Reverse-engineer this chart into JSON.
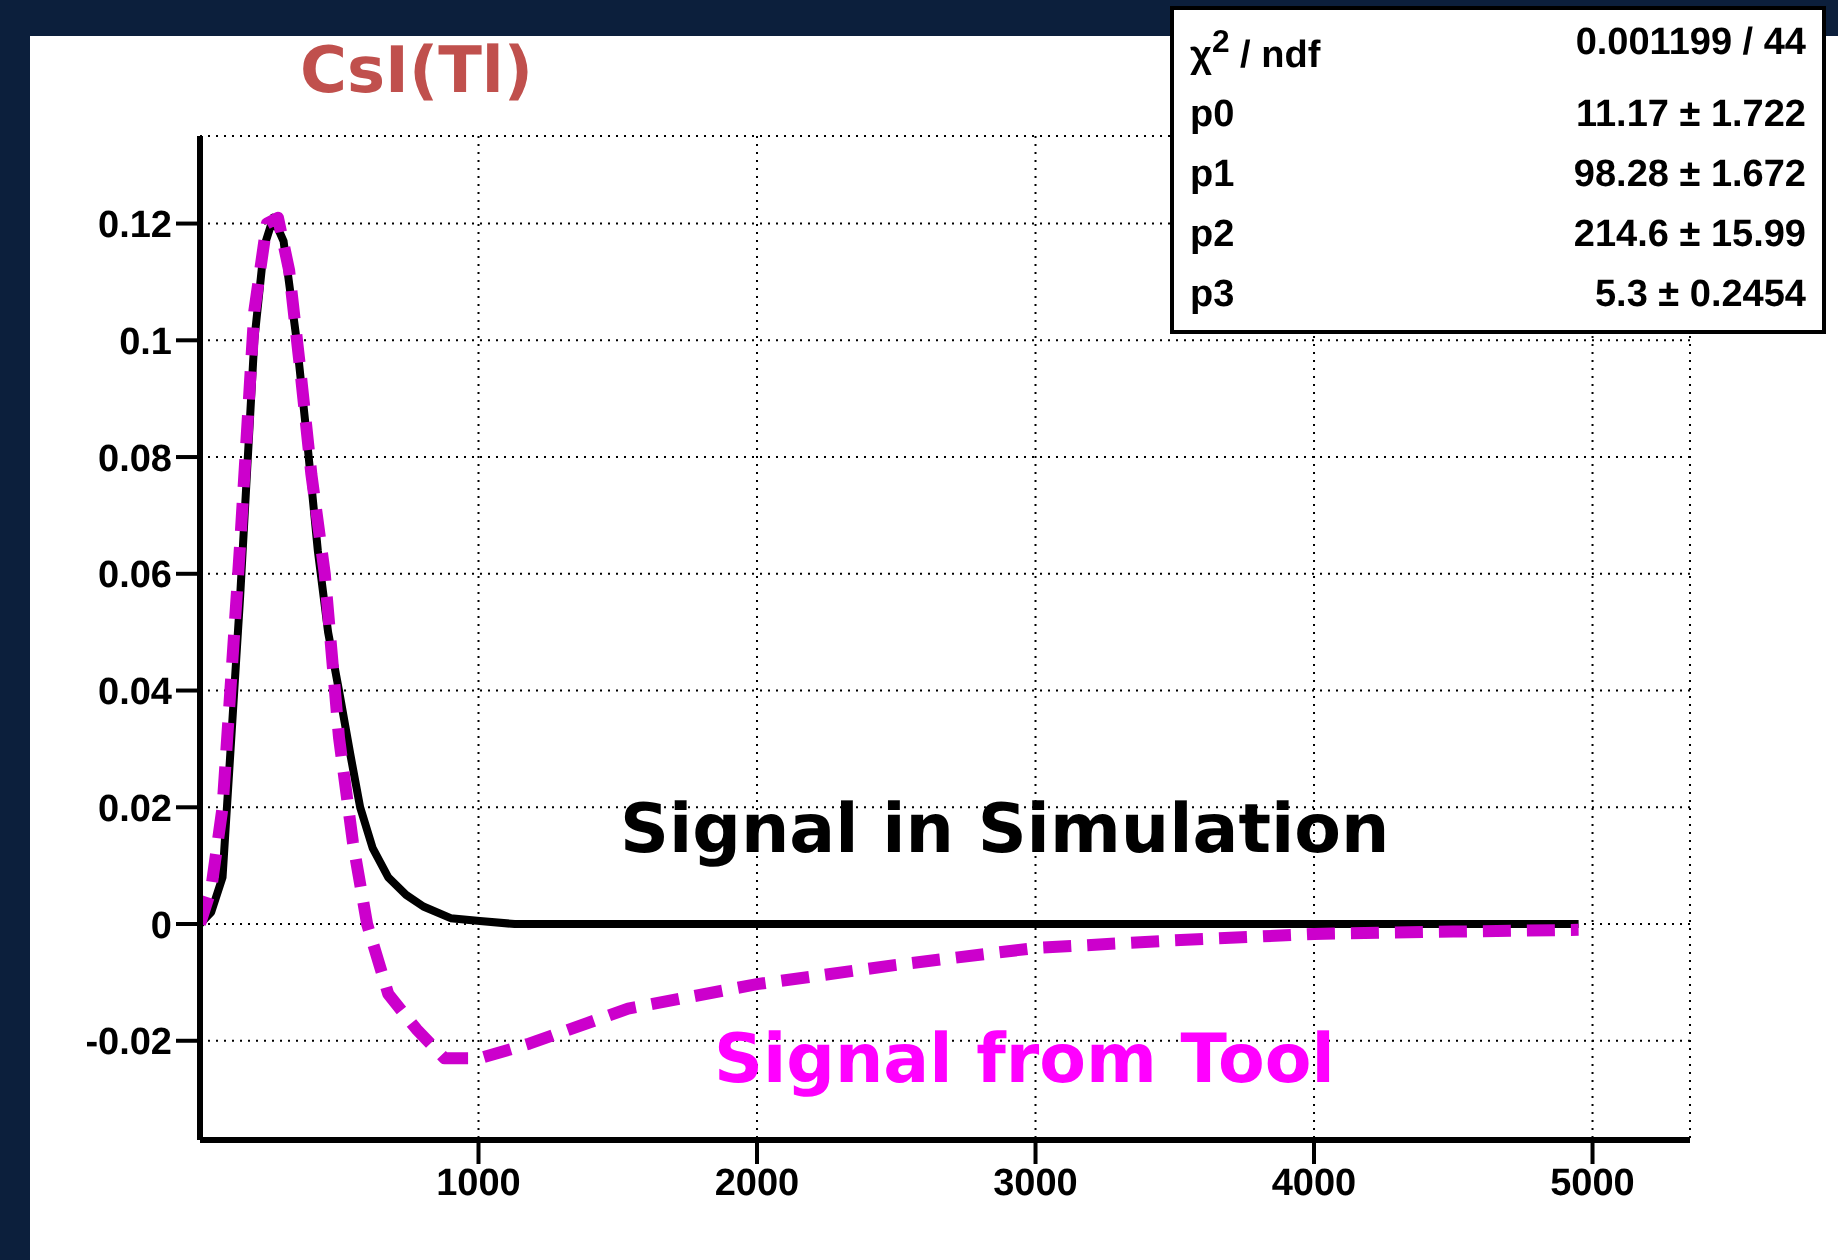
{
  "chart_data": {
    "type": "line",
    "title": "CsI(Tl)",
    "xlim": [
      0,
      5350
    ],
    "xticks": [
      1000,
      2000,
      3000,
      4000,
      5000
    ],
    "ylim": [
      -0.037,
      0.135
    ],
    "yticks": [
      -0.02,
      0,
      0.02,
      0.04,
      0.06,
      0.08,
      0.1,
      0.12
    ],
    "grid": true,
    "series": [
      {
        "name": "Signal in Simulation",
        "color": "#000000",
        "line_style": "solid",
        "x": [
          0,
          40,
          81,
          144,
          195,
          230,
          263,
          300,
          347,
          380,
          423,
          460,
          499,
          540,
          575,
          620,
          676,
          740,
          802,
          900,
          1005,
          1130,
          2000,
          3000,
          4000,
          4950
        ],
        "values": [
          0,
          0.002,
          0.008,
          0.056,
          0.1,
          0.116,
          0.121,
          0.117,
          0.1,
          0.085,
          0.064,
          0.05,
          0.04,
          0.029,
          0.02,
          0.013,
          0.008,
          0.005,
          0.003,
          0.001,
          0.0005,
          0,
          0,
          0,
          0,
          0
        ]
      },
      {
        "name": "Signal from Tool",
        "color": "#cc00cc",
        "line_style": "dashed",
        "x": [
          0,
          40,
          81,
          144,
          195,
          240,
          280,
          320,
          360,
          400,
          448,
          499,
          549,
          600,
          676,
          777,
          878,
          1005,
          1182,
          1537,
          2000,
          2500,
          3000,
          3500,
          4000,
          4500,
          4950
        ],
        "values": [
          0,
          0.006,
          0.02,
          0.065,
          0.105,
          0.12,
          0.121,
          0.112,
          0.095,
          0.077,
          0.06,
          0.032,
          0.014,
          0,
          -0.012,
          -0.018,
          -0.023,
          -0.023,
          -0.0205,
          -0.0145,
          -0.0103,
          -0.007,
          -0.0041,
          -0.0028,
          -0.0017,
          -0.0013,
          -0.001
        ]
      }
    ],
    "annotations": [
      "χ$^{2}$ / ndf",
      "0.001199 / 44",
      "p0",
      "11.17 ± 1.722",
      "p1",
      "98.28 ± 1.672",
      "p2",
      "214.6 ± 15.99",
      "p3",
      "5.3 ± 0.2454"
    ]
  }
}
